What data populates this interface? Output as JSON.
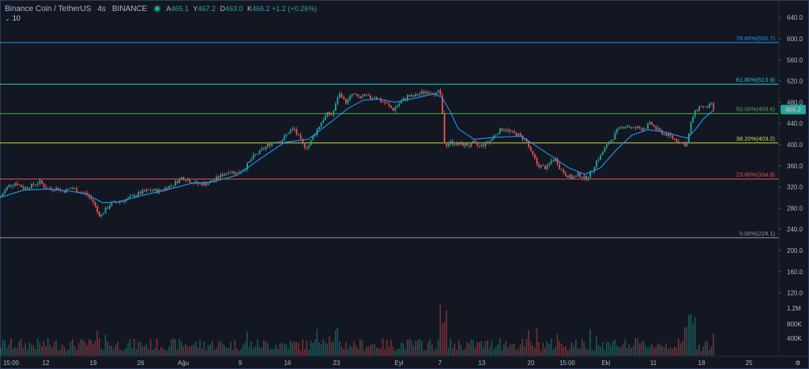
{
  "header": {
    "symbol": "Binance Coin / TetherUS",
    "interval": "4s",
    "exchange": "BINANCE",
    "ohlc": [
      {
        "k": "A",
        "v": "465.1"
      },
      {
        "k": "Y",
        "v": "467.2"
      },
      {
        "k": "D",
        "v": "463.0"
      },
      {
        "k": "K",
        "v": "466.2 +1.2 (+0.26%)"
      }
    ]
  },
  "indicator": {
    "label": "10"
  },
  "chart_data": {
    "type": "candlestick",
    "ylim": [
      100,
      660
    ],
    "y_ticks": [
      640.0,
      600.0,
      560.0,
      520.0,
      480.0,
      440.0,
      400.0,
      360.0,
      320.0,
      280.0,
      240.0,
      200.0,
      160.0,
      120.0
    ],
    "y_tick_labels": [
      "640.0",
      "600.0",
      "560.0",
      "520.0",
      "480.0",
      "440.0",
      "400.0",
      "360.0",
      "320.0",
      "280.0",
      "240.0",
      "200.0",
      "160.0",
      "120.0"
    ],
    "volume_ticks": [
      "1.2M",
      "800K",
      "400K"
    ],
    "x_tick_labels": [
      "15:00",
      "12",
      "19",
      "26",
      "Ağu",
      "9",
      "16",
      "23",
      "Eyl",
      "7",
      "13",
      "20",
      "15:00",
      "Eki",
      "11",
      "18",
      "25"
    ],
    "last_price": "466.2",
    "fib_levels": [
      {
        "label": "78.60%(592.7)",
        "value": 592.7,
        "color": "#2196f3"
      },
      {
        "label": "61.80%(513.9)",
        "value": 513.9,
        "color": "#26c6da"
      },
      {
        "label": "50.00%(458.6)",
        "value": 458.6,
        "color": "#4caf50"
      },
      {
        "label": "38.20%(403.2)",
        "value": 403.2,
        "color": "#c6e034"
      },
      {
        "label": "23.60%(334.8)",
        "value": 334.8,
        "color": "#ef5350"
      },
      {
        "label": "0.00%(224.1)",
        "value": 224.1,
        "color": "#9598a1"
      }
    ],
    "price_path": [
      [
        0,
        300
      ],
      [
        10,
        322
      ],
      [
        20,
        328
      ],
      [
        30,
        318
      ],
      [
        40,
        322
      ],
      [
        50,
        330
      ],
      [
        60,
        316
      ],
      [
        70,
        318
      ],
      [
        80,
        312
      ],
      [
        90,
        318
      ],
      [
        100,
        312
      ],
      [
        110,
        306
      ],
      [
        118,
        292
      ],
      [
        124,
        270
      ],
      [
        128,
        266
      ],
      [
        134,
        278
      ],
      [
        140,
        288
      ],
      [
        150,
        292
      ],
      [
        160,
        296
      ],
      [
        170,
        304
      ],
      [
        180,
        310
      ],
      [
        190,
        314
      ],
      [
        200,
        312
      ],
      [
        210,
        318
      ],
      [
        220,
        326
      ],
      [
        230,
        338
      ],
      [
        240,
        332
      ],
      [
        250,
        326
      ],
      [
        260,
        326
      ],
      [
        270,
        332
      ],
      [
        280,
        342
      ],
      [
        290,
        350
      ],
      [
        300,
        346
      ],
      [
        310,
        356
      ],
      [
        320,
        376
      ],
      [
        330,
        388
      ],
      [
        340,
        400
      ],
      [
        350,
        408
      ],
      [
        355,
        406
      ],
      [
        360,
        414
      ],
      [
        366,
        425
      ],
      [
        372,
        430
      ],
      [
        378,
        414
      ],
      [
        384,
        398
      ],
      [
        390,
        396
      ],
      [
        396,
        414
      ],
      [
        402,
        430
      ],
      [
        408,
        446
      ],
      [
        414,
        458
      ],
      [
        420,
        456
      ],
      [
        424,
        470
      ],
      [
        428,
        494
      ],
      [
        432,
        496
      ],
      [
        436,
        480
      ],
      [
        440,
        482
      ],
      [
        446,
        496
      ],
      [
        450,
        492
      ],
      [
        456,
        488
      ],
      [
        462,
        492
      ],
      [
        468,
        488
      ],
      [
        474,
        492
      ],
      [
        480,
        484
      ],
      [
        486,
        480
      ],
      [
        490,
        476
      ],
      [
        494,
        470
      ],
      [
        498,
        466
      ],
      [
        504,
        476
      ],
      [
        510,
        484
      ],
      [
        516,
        492
      ],
      [
        522,
        490
      ],
      [
        528,
        494
      ],
      [
        534,
        498
      ],
      [
        540,
        500
      ],
      [
        546,
        500
      ],
      [
        552,
        496
      ],
      [
        556,
        500
      ],
      [
        558,
        490
      ],
      [
        560,
        460
      ],
      [
        562,
        410
      ],
      [
        564,
        400
      ],
      [
        570,
        404
      ],
      [
        576,
        402
      ],
      [
        582,
        400
      ],
      [
        588,
        400
      ],
      [
        594,
        398
      ],
      [
        600,
        404
      ],
      [
        606,
        396
      ],
      [
        612,
        400
      ],
      [
        618,
        404
      ],
      [
        624,
        414
      ],
      [
        630,
        424
      ],
      [
        636,
        430
      ],
      [
        642,
        428
      ],
      [
        648,
        422
      ],
      [
        654,
        420
      ],
      [
        660,
        414
      ],
      [
        666,
        408
      ],
      [
        672,
        384
      ],
      [
        676,
        376
      ],
      [
        680,
        362
      ],
      [
        686,
        358
      ],
      [
        692,
        356
      ],
      [
        698,
        370
      ],
      [
        704,
        372
      ],
      [
        710,
        352
      ],
      [
        716,
        344
      ],
      [
        722,
        338
      ],
      [
        728,
        338
      ],
      [
        732,
        344
      ],
      [
        736,
        340
      ],
      [
        740,
        336
      ],
      [
        744,
        340
      ],
      [
        748,
        346
      ],
      [
        752,
        360
      ],
      [
        756,
        372
      ],
      [
        760,
        378
      ],
      [
        764,
        390
      ],
      [
        770,
        402
      ],
      [
        776,
        414
      ],
      [
        782,
        428
      ],
      [
        788,
        434
      ],
      [
        794,
        436
      ],
      [
        800,
        430
      ],
      [
        806,
        432
      ],
      [
        812,
        430
      ],
      [
        818,
        434
      ],
      [
        824,
        440
      ],
      [
        830,
        430
      ],
      [
        836,
        424
      ],
      [
        842,
        420
      ],
      [
        848,
        416
      ],
      [
        854,
        410
      ],
      [
        860,
        406
      ],
      [
        866,
        400
      ],
      [
        870,
        402
      ],
      [
        872,
        420
      ],
      [
        876,
        450
      ],
      [
        880,
        462
      ],
      [
        884,
        470
      ],
      [
        888,
        474
      ],
      [
        892,
        468
      ],
      [
        896,
        472
      ],
      [
        900,
        476
      ],
      [
        904,
        466
      ]
    ],
    "ma_path": [
      [
        0,
        300
      ],
      [
        30,
        314
      ],
      [
        60,
        316
      ],
      [
        90,
        312
      ],
      [
        110,
        306
      ],
      [
        130,
        290
      ],
      [
        150,
        292
      ],
      [
        180,
        304
      ],
      [
        210,
        314
      ],
      [
        240,
        326
      ],
      [
        270,
        330
      ],
      [
        300,
        342
      ],
      [
        330,
        374
      ],
      [
        360,
        404
      ],
      [
        390,
        410
      ],
      [
        420,
        444
      ],
      [
        440,
        468
      ],
      [
        460,
        484
      ],
      [
        480,
        486
      ],
      [
        500,
        480
      ],
      [
        520,
        486
      ],
      [
        550,
        496
      ],
      [
        560,
        488
      ],
      [
        570,
        462
      ],
      [
        580,
        430
      ],
      [
        600,
        410
      ],
      [
        630,
        414
      ],
      [
        660,
        416
      ],
      [
        680,
        396
      ],
      [
        700,
        376
      ],
      [
        720,
        356
      ],
      [
        740,
        344
      ],
      [
        760,
        356
      ],
      [
        780,
        390
      ],
      [
        800,
        418
      ],
      [
        820,
        428
      ],
      [
        840,
        424
      ],
      [
        860,
        416
      ],
      [
        870,
        412
      ],
      [
        880,
        428
      ],
      [
        890,
        448
      ],
      [
        904,
        466
      ]
    ]
  }
}
